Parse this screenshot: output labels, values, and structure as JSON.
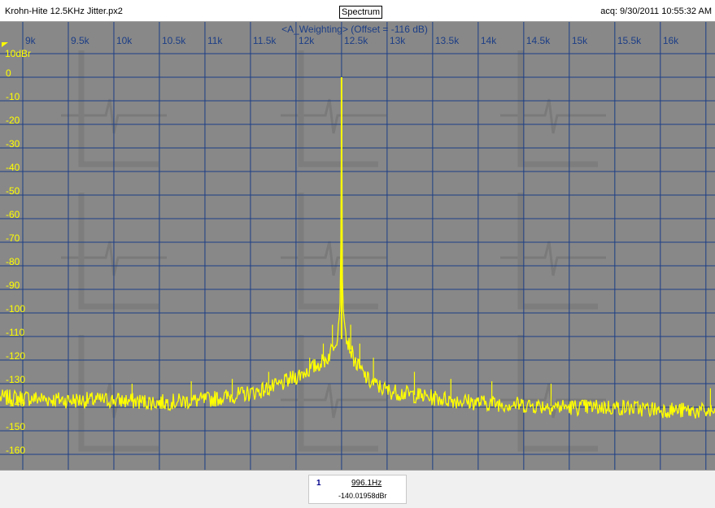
{
  "window": {
    "file_name": "Krohn-Hite 12.5KHz Jitter.px2",
    "view_button": "Spectrum",
    "acq_time": "acq: 9/30/2011 10:55:32 AM"
  },
  "colors": {
    "plot_background": "#888888",
    "grid": "#1c3e86",
    "trace": "#ffff00",
    "y_labels": "#ffff00",
    "x_labels": "#1c3e86"
  },
  "chart_data": {
    "type": "line",
    "title": "<A_Weighting> (Offset = -116 dB)",
    "ylabel": "10dBr",
    "xlabel": "",
    "xlim": [
      8750,
      16600
    ],
    "ylim": [
      -170,
      10
    ],
    "grid": true,
    "x_ticks": [
      {
        "value": 9000,
        "label": "9k"
      },
      {
        "value": 9500,
        "label": "9.5k"
      },
      {
        "value": 10000,
        "label": "10k"
      },
      {
        "value": 10500,
        "label": "10.5k"
      },
      {
        "value": 11000,
        "label": "11k"
      },
      {
        "value": 11500,
        "label": "11.5k"
      },
      {
        "value": 12000,
        "label": "12k"
      },
      {
        "value": 12500,
        "label": "12.5k"
      },
      {
        "value": 13000,
        "label": "13k"
      },
      {
        "value": 13500,
        "label": "13.5k"
      },
      {
        "value": 14000,
        "label": "14k"
      },
      {
        "value": 14500,
        "label": "14.5k"
      },
      {
        "value": 15000,
        "label": "15k"
      },
      {
        "value": 15500,
        "label": "15.5k"
      },
      {
        "value": 16000,
        "label": "16k"
      }
    ],
    "y_ticks": [
      0,
      -10,
      -20,
      -30,
      -40,
      -50,
      -60,
      -70,
      -80,
      -90,
      -100,
      -110,
      -120,
      -130,
      -140,
      -150,
      -160
    ],
    "series": [
      {
        "color": "#ffff00",
        "carrier": {
          "x": 12500,
          "y": 0
        },
        "x": [
          8750,
          9000,
          9500,
          10000,
          10500,
          11000,
          11500,
          11800,
          12000,
          12200,
          12350,
          12450,
          12480,
          12490,
          12500,
          12510,
          12520,
          12550,
          12650,
          12800,
          13000,
          13500,
          14000,
          14500,
          15000,
          15500,
          16000,
          16600
        ],
        "y": [
          -136,
          -136,
          -137,
          -137,
          -138,
          -137,
          -134,
          -131,
          -127,
          -123,
          -119,
          -110,
          -100,
          -88,
          0,
          -88,
          -100,
          -110,
          -121,
          -129,
          -133,
          -136,
          -138,
          -139,
          -140,
          -140,
          -141,
          -142
        ],
        "spurs": [
          {
            "x": 10200,
            "y": -130
          },
          {
            "x": 10850,
            "y": -129
          },
          {
            "x": 11300,
            "y": -128
          },
          {
            "x": 11700,
            "y": -125
          },
          {
            "x": 12150,
            "y": -119
          },
          {
            "x": 12300,
            "y": -113
          },
          {
            "x": 12400,
            "y": -105
          },
          {
            "x": 12600,
            "y": -105
          },
          {
            "x": 12700,
            "y": -113
          },
          {
            "x": 12850,
            "y": -119
          },
          {
            "x": 13300,
            "y": -125
          },
          {
            "x": 13700,
            "y": -128
          },
          {
            "x": 14150,
            "y": -129
          },
          {
            "x": 14800,
            "y": -130
          },
          {
            "x": 16550,
            "y": -132
          }
        ]
      }
    ]
  },
  "cursor": {
    "index": "1",
    "frequency": "996.1Hz",
    "level": "-140.01958dBr"
  }
}
